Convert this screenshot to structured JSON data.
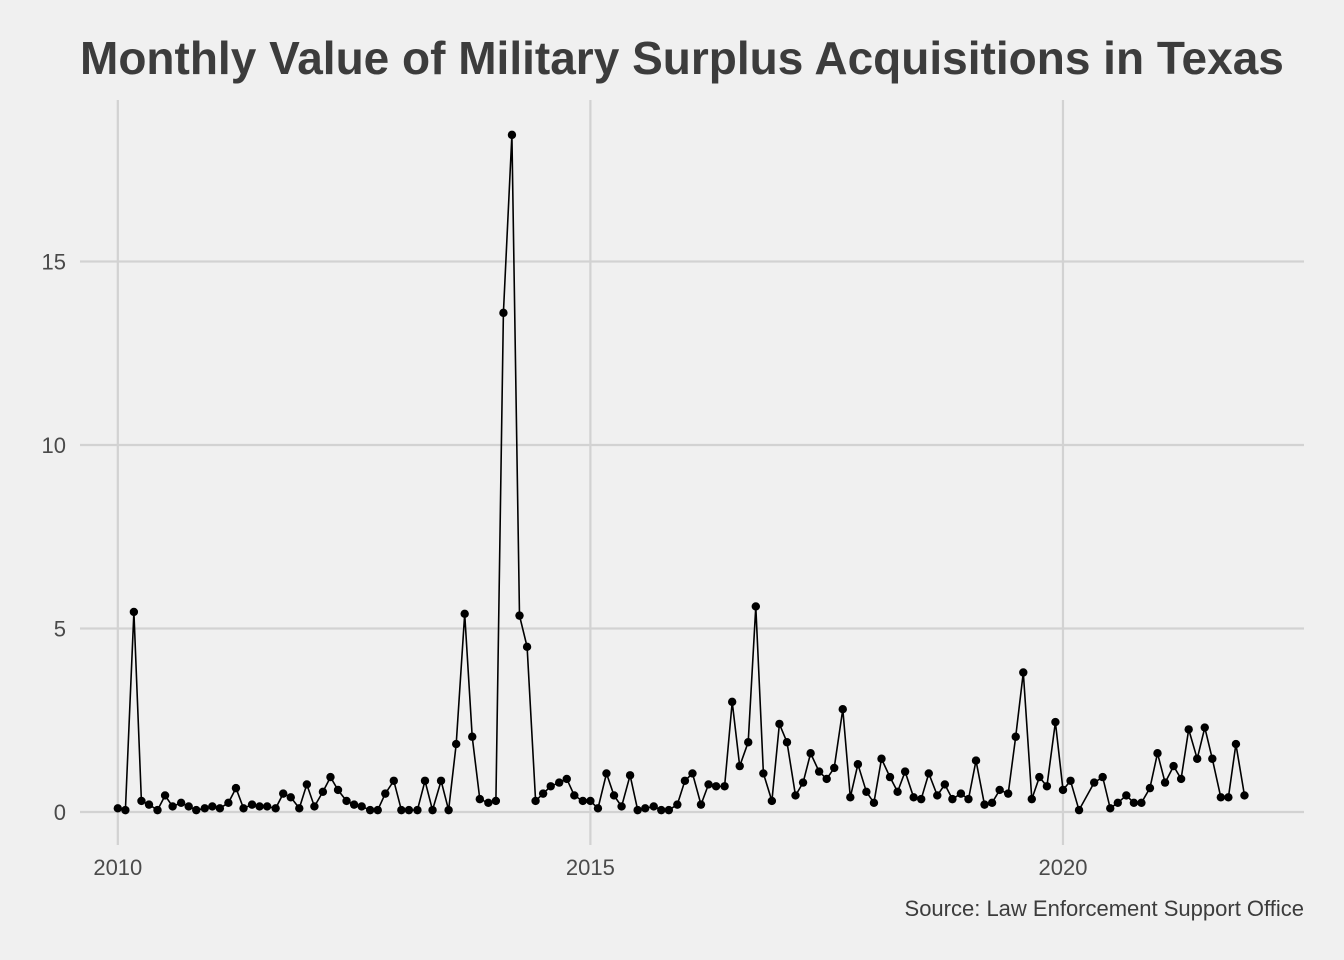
{
  "colors": {
    "background": "#f0f0f0",
    "grid": "#d2d2d2",
    "series": "#000000",
    "title": "#3c3c3c",
    "tick": "#4a4a4a"
  },
  "chart_data": {
    "type": "line",
    "title": "Monthly Value of Military Surplus Acquisitions in Texas",
    "caption": "Source: Law Enforcement Support Office",
    "xlabel": "",
    "ylabel": "",
    "xlim": [
      2009.6,
      2022.55
    ],
    "ylim": [
      -0.9,
      19.4
    ],
    "xticks": [
      2010,
      2015,
      2020
    ],
    "xtick_labels": [
      "2010",
      "2015",
      "2020"
    ],
    "yticks": [
      0,
      5,
      10,
      15
    ],
    "ytick_labels": [
      "0",
      "5",
      "10",
      "15"
    ],
    "grid": true,
    "legend": "none",
    "series": [
      {
        "points": [
          [
            2010.0,
            0.1
          ],
          [
            2010.08,
            0.05
          ],
          [
            2010.17,
            5.45
          ],
          [
            2010.25,
            0.3
          ],
          [
            2010.33,
            0.2
          ],
          [
            2010.42,
            0.05
          ],
          [
            2010.5,
            0.45
          ],
          [
            2010.58,
            0.15
          ],
          [
            2010.67,
            0.25
          ],
          [
            2010.75,
            0.15
          ],
          [
            2010.83,
            0.05
          ],
          [
            2010.92,
            0.1
          ],
          [
            2011.0,
            0.15
          ],
          [
            2011.08,
            0.1
          ],
          [
            2011.17,
            0.25
          ],
          [
            2011.25,
            0.65
          ],
          [
            2011.33,
            0.1
          ],
          [
            2011.42,
            0.2
          ],
          [
            2011.5,
            0.15
          ],
          [
            2011.58,
            0.15
          ],
          [
            2011.67,
            0.1
          ],
          [
            2011.75,
            0.5
          ],
          [
            2011.83,
            0.4
          ],
          [
            2011.92,
            0.1
          ],
          [
            2012.0,
            0.75
          ],
          [
            2012.08,
            0.15
          ],
          [
            2012.17,
            0.55
          ],
          [
            2012.25,
            0.95
          ],
          [
            2012.33,
            0.6
          ],
          [
            2012.42,
            0.3
          ],
          [
            2012.5,
            0.2
          ],
          [
            2012.58,
            0.15
          ],
          [
            2012.67,
            0.05
          ],
          [
            2012.75,
            0.05
          ],
          [
            2012.83,
            0.5
          ],
          [
            2012.92,
            0.85
          ],
          [
            2013.0,
            0.05
          ],
          [
            2013.08,
            0.05
          ],
          [
            2013.17,
            0.05
          ],
          [
            2013.25,
            0.85
          ],
          [
            2013.33,
            0.05
          ],
          [
            2013.42,
            0.85
          ],
          [
            2013.5,
            0.05
          ],
          [
            2013.58,
            1.85
          ],
          [
            2013.67,
            5.4
          ],
          [
            2013.75,
            2.05
          ],
          [
            2013.83,
            0.35
          ],
          [
            2013.92,
            0.25
          ],
          [
            2014.0,
            0.3
          ],
          [
            2014.08,
            13.6
          ],
          [
            2014.17,
            18.45
          ],
          [
            2014.25,
            5.35
          ],
          [
            2014.33,
            4.5
          ],
          [
            2014.42,
            0.3
          ],
          [
            2014.5,
            0.5
          ],
          [
            2014.58,
            0.7
          ],
          [
            2014.67,
            0.8
          ],
          [
            2014.75,
            0.9
          ],
          [
            2014.83,
            0.45
          ],
          [
            2014.92,
            0.3
          ],
          [
            2015.0,
            0.3
          ],
          [
            2015.08,
            0.1
          ],
          [
            2015.17,
            1.05
          ],
          [
            2015.25,
            0.45
          ],
          [
            2015.33,
            0.15
          ],
          [
            2015.42,
            1.0
          ],
          [
            2015.5,
            0.05
          ],
          [
            2015.58,
            0.1
          ],
          [
            2015.67,
            0.15
          ],
          [
            2015.75,
            0.05
          ],
          [
            2015.83,
            0.05
          ],
          [
            2015.92,
            0.2
          ],
          [
            2016.0,
            0.85
          ],
          [
            2016.08,
            1.05
          ],
          [
            2016.17,
            0.2
          ],
          [
            2016.25,
            0.75
          ],
          [
            2016.33,
            0.7
          ],
          [
            2016.42,
            0.7
          ],
          [
            2016.5,
            3.0
          ],
          [
            2016.58,
            1.25
          ],
          [
            2016.67,
            1.9
          ],
          [
            2016.75,
            5.6
          ],
          [
            2016.83,
            1.05
          ],
          [
            2016.92,
            0.3
          ],
          [
            2017.0,
            2.4
          ],
          [
            2017.08,
            1.9
          ],
          [
            2017.17,
            0.45
          ],
          [
            2017.25,
            0.8
          ],
          [
            2017.33,
            1.6
          ],
          [
            2017.42,
            1.1
          ],
          [
            2017.5,
            0.9
          ],
          [
            2017.58,
            1.2
          ],
          [
            2017.67,
            2.8
          ],
          [
            2017.75,
            0.4
          ],
          [
            2017.83,
            1.3
          ],
          [
            2017.92,
            0.55
          ],
          [
            2018.0,
            0.25
          ],
          [
            2018.08,
            1.45
          ],
          [
            2018.17,
            0.95
          ],
          [
            2018.25,
            0.55
          ],
          [
            2018.33,
            1.1
          ],
          [
            2018.42,
            0.4
          ],
          [
            2018.5,
            0.35
          ],
          [
            2018.58,
            1.05
          ],
          [
            2018.67,
            0.45
          ],
          [
            2018.75,
            0.75
          ],
          [
            2018.83,
            0.35
          ],
          [
            2018.92,
            0.5
          ],
          [
            2019.0,
            0.35
          ],
          [
            2019.08,
            1.4
          ],
          [
            2019.17,
            0.2
          ],
          [
            2019.25,
            0.25
          ],
          [
            2019.33,
            0.6
          ],
          [
            2019.42,
            0.5
          ],
          [
            2019.5,
            2.05
          ],
          [
            2019.58,
            3.8
          ],
          [
            2019.67,
            0.35
          ],
          [
            2019.75,
            0.95
          ],
          [
            2019.83,
            0.7
          ],
          [
            2019.92,
            2.45
          ],
          [
            2020.0,
            0.6
          ],
          [
            2020.08,
            0.85
          ],
          [
            2020.17,
            0.05
          ],
          [
            2020.33,
            0.8
          ],
          [
            2020.42,
            0.95
          ],
          [
            2020.5,
            0.1
          ],
          [
            2020.58,
            0.25
          ],
          [
            2020.67,
            0.45
          ],
          [
            2020.75,
            0.25
          ],
          [
            2020.83,
            0.25
          ],
          [
            2020.92,
            0.65
          ],
          [
            2021.0,
            1.6
          ],
          [
            2021.08,
            0.8
          ],
          [
            2021.17,
            1.25
          ],
          [
            2021.25,
            0.9
          ],
          [
            2021.33,
            2.25
          ],
          [
            2021.42,
            1.45
          ],
          [
            2021.5,
            2.3
          ],
          [
            2021.58,
            1.45
          ],
          [
            2021.67,
            0.4
          ],
          [
            2021.75,
            0.4
          ],
          [
            2021.83,
            1.85
          ],
          [
            2021.92,
            0.45
          ]
        ]
      }
    ]
  }
}
